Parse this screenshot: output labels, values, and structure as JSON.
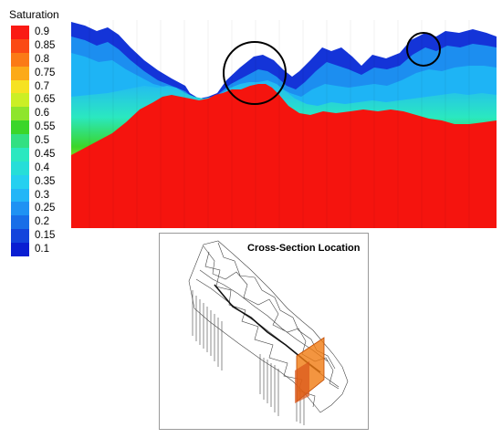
{
  "legend": {
    "title": "Saturation",
    "levels": [
      "0.9",
      "0.85",
      "0.8",
      "0.75",
      "0.7",
      "0.65",
      "0.6",
      "0.55",
      "0.5",
      "0.45",
      "0.4",
      "0.35",
      "0.3",
      "0.25",
      "0.2",
      "0.15",
      "0.1"
    ],
    "colors": [
      "#fa1a14",
      "#fb4a14",
      "#fb7a16",
      "#fcaa18",
      "#f6e222",
      "#cbef25",
      "#8ee52c",
      "#3bd629",
      "#32e082",
      "#2ae8c0",
      "#26ded8",
      "#25d0f0",
      "#23b6f7",
      "#1f92f3",
      "#186ee8",
      "#1344dc",
      "#0a1ed2"
    ]
  },
  "inset": {
    "title": "Cross-Section Location"
  },
  "colors": {
    "red": "#f5140e",
    "cyan_blue": "#1eb4f5",
    "mid_blue": "#1c8ef0",
    "dark_blue": "#1434d8",
    "highlight": "#f07a10"
  }
}
